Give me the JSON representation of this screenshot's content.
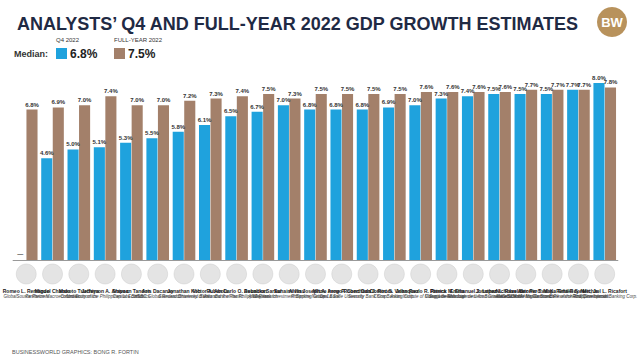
{
  "chart_data": {
    "type": "bar",
    "title": "ANALYSTS’ Q4 AND FULL-YEAR 2022 GDP GROWTH ESTIMATES",
    "logo": "BW",
    "source": "BUSINESSWORLD GRAPHICS: BONG R. FORTIN",
    "median_title": "Median:",
    "categories": [
      "Romeo L. Remando",
      "Miguel Chanco",
      "Makoto Tsuchiya",
      "Jefferson A. Arapoc",
      "Shivaan Tandon",
      "Aris Dacanay",
      "Jonathan Koh",
      "Victor A. Abola",
      "Ruben Carlo O. Asuncion",
      "Debalika Sarkar",
      "Suhaimi Ilias",
      "Alvin Joseph A. Arogo",
      "Mitzie Irene P. Conchada",
      "Robert Dan J. Roces",
      "Domini S. Velasquez",
      "John Paolo R. Rivera",
      "Patrick M. Ella",
      "Emmanuel J. Lopez",
      "Jonathan L. Ravelas",
      "Nicholas Antonio T. Mapa",
      "Ser Percival K. Peña-Reyes",
      "Emilio S. Neri, Jr.",
      "Michael L. Ricafort"
    ],
    "institutions": [
      "GlobalSource Partners",
      "Pantheon Macroeconomics",
      "Oxford Economics",
      "University of the Philippines Los Baños",
      "Capital Economics",
      "HSBC Global Research",
      "Standard Chartered Bank",
      "University of Asia and the Pacific",
      "UnionBank of the Philippines, Inc.",
      "ANZ Research",
      "Maybank Investment Banking Group",
      "Philippine National Bank",
      "De La Salle University",
      "Security Bank Corp.",
      "China Banking Corp.",
      "Asian Institute of Management",
      "Sun Life Financial",
      "Colegio de San Juan de Letran Graduate School",
      "eManagement for Business and Marketing Services",
      "ING Bank NV Manila Branch",
      "Ateneo Center for Economic Research and Development",
      "Bank of the Philippine Islands",
      "Rizal Commercial Banking Corp."
    ],
    "series": [
      {
        "name": "Q4 2022",
        "color": "#1fa2dd",
        "median": 6.8,
        "median_label": "6.8%",
        "values": [
          null,
          4.6,
          5.0,
          5.1,
          5.3,
          5.5,
          5.8,
          6.1,
          6.5,
          6.7,
          7.0,
          6.8,
          6.8,
          6.8,
          6.9,
          7.0,
          7.3,
          7.4,
          7.5,
          7.5,
          7.5,
          7.7,
          8.0
        ],
        "value_labels": [
          "—",
          "4.6%",
          "5.0%",
          "5.1%",
          "5.3%",
          "5.5%",
          "5.8%",
          "6.1%",
          "6.5%",
          "6.7%",
          "7.0%",
          "6.8%",
          "6.8%",
          "6.8%",
          "6.9%",
          "7.0%",
          "7.3%",
          "7.4%",
          "7.5%",
          "7.5%",
          "7.5%",
          "7.7%",
          "8.0%"
        ]
      },
      {
        "name": "FULL-YEAR 2022",
        "color": "#a3806a",
        "median": 7.5,
        "median_label": "7.5%",
        "values": [
          6.8,
          6.9,
          7.0,
          7.4,
          7.0,
          7.0,
          7.2,
          7.3,
          7.4,
          7.5,
          7.3,
          7.5,
          7.5,
          7.5,
          7.5,
          7.6,
          7.6,
          7.6,
          7.6,
          7.7,
          7.7,
          7.7,
          7.8
        ],
        "value_labels": [
          "6.8%",
          "6.9%",
          "7.0%",
          "7.4%",
          "7.0%",
          "7.0%",
          "7.2%",
          "7.3%",
          "7.4%",
          "7.5%",
          "7.3%",
          "7.5%",
          "7.5%",
          "7.5%",
          "7.5%",
          "7.6%",
          "7.6%",
          "7.6%",
          "7.6%",
          "7.7%",
          "7.7%",
          "7.7%",
          "7.8%"
        ]
      }
    ],
    "ylim": [
      0,
      8.5
    ],
    "grid": false,
    "data_labels": true,
    "tick_labels": "x"
  }
}
